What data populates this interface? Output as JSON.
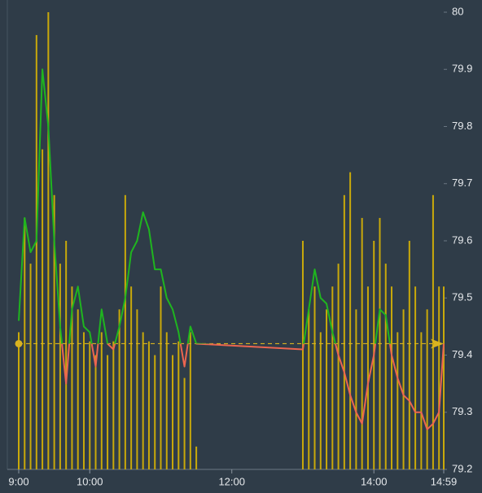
{
  "chart_data": {
    "type": "line",
    "x": [
      540,
      545,
      550,
      555,
      560,
      565,
      570,
      575,
      580,
      585,
      590,
      595,
      600,
      605,
      610,
      615,
      620,
      625,
      630,
      635,
      640,
      645,
      650,
      655,
      660,
      665,
      670,
      675,
      680,
      685,
      690,
      780,
      785,
      790,
      795,
      800,
      805,
      810,
      815,
      820,
      825,
      830,
      835,
      840,
      845,
      850,
      855,
      860,
      865,
      870,
      875,
      880,
      885,
      890,
      895,
      899
    ],
    "series": [
      {
        "color": "#1fb51f",
        "color_below": "#ec6550",
        "values": [
          79.46,
          79.64,
          79.58,
          79.6,
          79.9,
          79.8,
          79.6,
          79.45,
          79.35,
          79.48,
          79.52,
          79.45,
          79.44,
          79.38,
          79.48,
          79.42,
          79.41,
          79.45,
          79.5,
          79.58,
          79.6,
          79.65,
          79.62,
          79.55,
          79.55,
          79.5,
          79.48,
          79.44,
          79.38,
          79.45,
          79.42,
          79.41,
          79.48,
          79.55,
          79.5,
          79.49,
          79.44,
          79.4,
          79.37,
          79.33,
          79.3,
          79.28,
          79.35,
          79.4,
          79.48,
          79.47,
          79.4,
          79.36,
          79.33,
          79.32,
          79.3,
          79.3,
          79.27,
          79.28,
          79.3,
          79.42
        ]
      }
    ],
    "volume": {
      "color": "#c9a90a",
      "ylim": [
        0,
        100
      ],
      "values": [
        30,
        55,
        45,
        95,
        70,
        100,
        60,
        45,
        50,
        40,
        35,
        30,
        28,
        25,
        30,
        25,
        28,
        35,
        60,
        40,
        35,
        30,
        28,
        25,
        40,
        30,
        25,
        28,
        20,
        30,
        5,
        50,
        35,
        40,
        30,
        35,
        40,
        45,
        60,
        65,
        35,
        55,
        40,
        50,
        55,
        45,
        40,
        30,
        35,
        50,
        40,
        30,
        35,
        60,
        40,
        40
      ]
    },
    "reference": 79.42,
    "reference_color": "#d9b320",
    "xlim": [
      540,
      899
    ],
    "xticks": [
      {
        "value": 540,
        "label": "9:00"
      },
      {
        "value": 600,
        "label": "10:00"
      },
      {
        "value": 720,
        "label": "12:00"
      },
      {
        "value": 840,
        "label": "14:00"
      },
      {
        "value": 899,
        "label": "14:59"
      }
    ],
    "ylim": [
      79.2,
      80
    ],
    "yticks": [
      79.2,
      79.3,
      79.4,
      79.5,
      79.6,
      79.7,
      79.8,
      79.9,
      80
    ]
  }
}
